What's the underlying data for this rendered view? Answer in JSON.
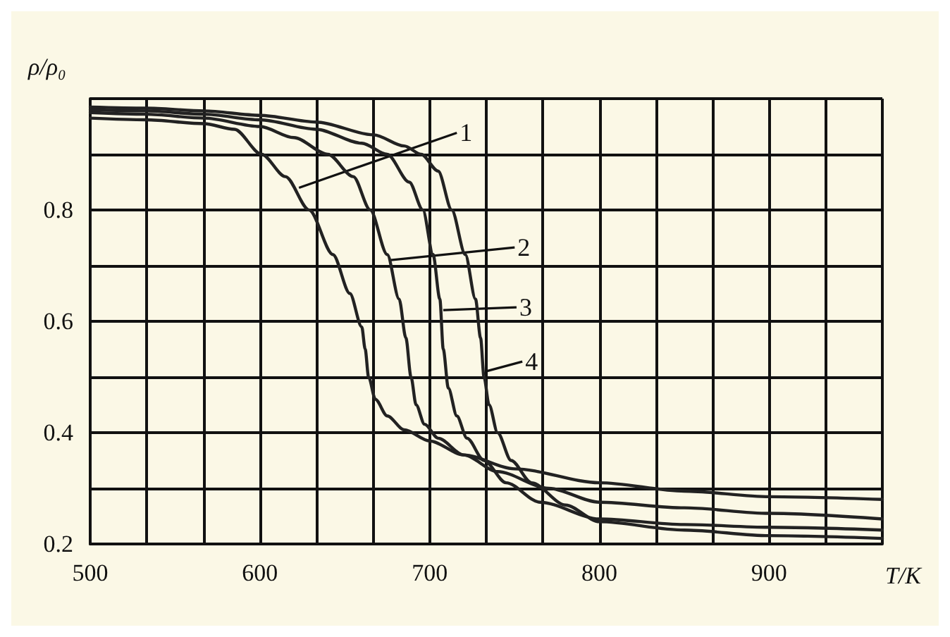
{
  "chart_data": {
    "type": "line",
    "xlabel": "T/K",
    "ylabel": "ρ/ρ₀",
    "xlim": [
      500,
      966.7
    ],
    "ylim": [
      0.2,
      1.0
    ],
    "xticks": [
      500,
      {
        "value": 533.3,
        "label": null
      },
      {
        "value": 566.7,
        "label": null
      },
      600,
      {
        "value": 633.3,
        "label": null
      },
      {
        "value": 666.7,
        "label": null
      },
      700,
      {
        "value": 733.3,
        "label": null
      },
      {
        "value": 766.7,
        "label": null
      },
      800,
      {
        "value": 833.3,
        "label": null
      },
      {
        "value": 866.7,
        "label": null
      },
      900,
      {
        "value": 933.3,
        "label": null
      },
      {
        "value": 966.7,
        "label": null
      }
    ],
    "yticks": [
      0.2,
      {
        "value": 0.3,
        "label": null
      },
      0.4,
      {
        "value": 0.5,
        "label": null
      },
      0.6,
      {
        "value": 0.7,
        "label": null
      },
      0.8,
      {
        "value": 0.9,
        "label": null
      },
      {
        "value": 1.0,
        "label": null
      }
    ],
    "grid": true,
    "marker": "none",
    "line_style": "solid",
    "series": [
      {
        "color": "#222222",
        "x": [
          500,
          533,
          567,
          585,
          601,
          615,
          629,
          643,
          653,
          660,
          662,
          664,
          668,
          675,
          685,
          700,
          720,
          750,
          800,
          850,
          900,
          966.7
        ],
        "values": [
          0.965,
          0.962,
          0.955,
          0.945,
          0.9,
          0.86,
          0.8,
          0.72,
          0.65,
          0.59,
          0.55,
          0.5,
          0.46,
          0.43,
          0.405,
          0.385,
          0.36,
          0.335,
          0.31,
          0.295,
          0.285,
          0.28
        ]
      },
      {
        "color": "#222222",
        "x": [
          500,
          533,
          567,
          600,
          620,
          640,
          655,
          665,
          675,
          682,
          686,
          689,
          692,
          697,
          705,
          720,
          740,
          770,
          800,
          850,
          900,
          966.7
        ],
        "values": [
          0.975,
          0.972,
          0.965,
          0.95,
          0.93,
          0.9,
          0.86,
          0.8,
          0.72,
          0.64,
          0.57,
          0.5,
          0.45,
          0.415,
          0.39,
          0.36,
          0.33,
          0.3,
          0.275,
          0.265,
          0.255,
          0.245
        ]
      },
      {
        "color": "#222222",
        "x": [
          500,
          533,
          567,
          600,
          633,
          660,
          675,
          688,
          696,
          702,
          706,
          708,
          711,
          716,
          722,
          732,
          745,
          765,
          800,
          850,
          900,
          966.7
        ],
        "values": [
          0.98,
          0.978,
          0.972,
          0.962,
          0.945,
          0.92,
          0.9,
          0.85,
          0.8,
          0.72,
          0.64,
          0.55,
          0.48,
          0.43,
          0.39,
          0.35,
          0.31,
          0.275,
          0.245,
          0.235,
          0.23,
          0.225
        ]
      },
      {
        "color": "#222222",
        "x": [
          500,
          533,
          567,
          600,
          633,
          667,
          685,
          695,
          705,
          713,
          721,
          727,
          730,
          732,
          735,
          740,
          748,
          760,
          780,
          800,
          850,
          900,
          966.7
        ],
        "values": [
          0.985,
          0.983,
          0.978,
          0.97,
          0.958,
          0.935,
          0.915,
          0.9,
          0.87,
          0.8,
          0.72,
          0.64,
          0.57,
          0.5,
          0.45,
          0.4,
          0.35,
          0.31,
          0.27,
          0.24,
          0.225,
          0.215,
          0.21
        ]
      }
    ],
    "annotations": [
      {
        "text": "1",
        "x": 623,
        "y": 0.84
      },
      {
        "text": "2",
        "x": 677,
        "y": 0.71
      },
      {
        "text": "3",
        "x": 708,
        "y": 0.62
      },
      {
        "text": "4",
        "x": 733,
        "y": 0.51
      }
    ]
  }
}
